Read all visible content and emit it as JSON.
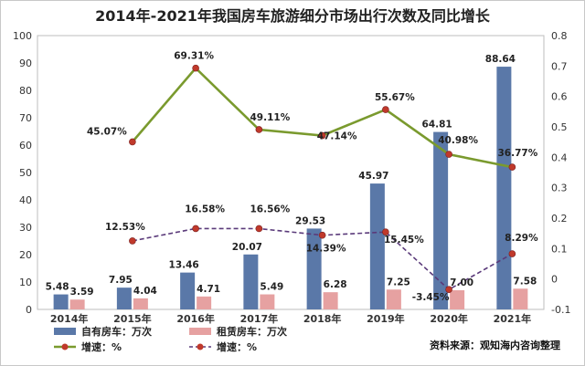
{
  "chart_data": {
    "type": "bar",
    "title": "2014年-2021年我国房车旅游细分市场出行次数及同比增长",
    "categories": [
      "2014年",
      "2015年",
      "2016年",
      "2017年",
      "2018年",
      "2019年",
      "2020年",
      "2021年"
    ],
    "series": [
      {
        "name": "自有房车：万次",
        "type": "bar",
        "axis": "left",
        "color": "#5a78a8",
        "values": [
          5.48,
          7.95,
          13.46,
          20.07,
          29.53,
          45.97,
          64.81,
          88.64
        ],
        "labels": [
          "5.48",
          "7.95",
          "13.46",
          "20.07",
          "29.53",
          "45.97",
          "64.81",
          "88.64"
        ]
      },
      {
        "name": "租赁房车：万次",
        "type": "bar",
        "axis": "left",
        "color": "#e6a1a1",
        "values": [
          3.59,
          4.04,
          4.71,
          5.49,
          6.28,
          7.25,
          7.0,
          7.58
        ],
        "labels": [
          "3.59",
          "4.04",
          "4.71",
          "5.49",
          "6.28",
          "7.25",
          "7.00",
          "7.58"
        ]
      },
      {
        "name": "增速：%",
        "type": "line",
        "axis": "right",
        "color": "#7a9a2e",
        "marker": "#c0392b",
        "dash": false,
        "values": [
          null,
          0.4507,
          0.6931,
          0.4911,
          0.4714,
          0.5567,
          0.4098,
          0.3677
        ],
        "labels": [
          "",
          "45.07%",
          "69.31%",
          "49.11%",
          "47.14%",
          "55.67%",
          "40.98%",
          "36.77%"
        ]
      },
      {
        "name": "增速：%",
        "type": "line",
        "axis": "right",
        "color": "#5a3a7a",
        "marker": "#c0392b",
        "dash": true,
        "values": [
          null,
          0.1253,
          0.1658,
          0.1656,
          0.1439,
          0.1545,
          -0.0345,
          0.0829
        ],
        "labels": [
          "",
          "12.53%",
          "16.58%",
          "16.56%",
          "14.39%",
          "15.45%",
          "-3.45%",
          "8.29%"
        ]
      }
    ],
    "y_left": {
      "min": 0,
      "max": 100,
      "ticks": [
        0,
        10,
        20,
        30,
        40,
        50,
        60,
        70,
        80,
        90,
        100
      ]
    },
    "y_right": {
      "min": -0.1,
      "max": 0.8,
      "ticks": [
        "-0.1",
        "0",
        "0.1",
        "0.2",
        "0.3",
        "0.4",
        "0.5",
        "0.6",
        "0.7",
        "0.8"
      ]
    },
    "grid": false,
    "legend": "bottom-left",
    "source": "资料来源：观知海内咨询整理"
  }
}
